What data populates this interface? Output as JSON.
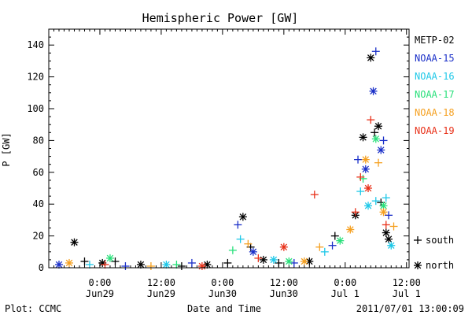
{
  "chart_data": {
    "type": "scatter",
    "title": "Hemispheric Power [GW]",
    "xlabel": "Date and Time",
    "ylabel": "P [GW]",
    "ylim": [
      0,
      150
    ],
    "xlim": [
      "2011-06-28T14:00",
      "2011-07-01T12:30"
    ],
    "y_ticks": [
      0,
      20,
      40,
      60,
      80,
      100,
      120,
      140
    ],
    "x_ticks": [
      {
        "at": "2011-06-29T00:00",
        "line1": "0:00",
        "line2": "Jun29"
      },
      {
        "at": "2011-06-29T12:00",
        "line1": "12:00",
        "line2": "Jun29"
      },
      {
        "at": "2011-06-30T00:00",
        "line1": "0:00",
        "line2": "Jun30"
      },
      {
        "at": "2011-06-30T12:00",
        "line1": "12:00",
        "line2": "Jun30"
      },
      {
        "at": "2011-07-01T00:00",
        "line1": "0:00",
        "line2": "Jul 1"
      },
      {
        "at": "2011-07-01T12:00",
        "line1": "12:00",
        "line2": "Jul 1"
      }
    ],
    "legend_position": "right",
    "marker_legend": [
      {
        "marker": "+",
        "label": "south"
      },
      {
        "marker": "*",
        "label": "north"
      }
    ],
    "series": [
      {
        "name": "METP-02",
        "color": "#000000",
        "points": [
          {
            "x": "2011-06-28T19:00",
            "y": 16,
            "m": "*"
          },
          {
            "x": "2011-06-28T21:00",
            "y": 4,
            "m": "+"
          },
          {
            "x": "2011-06-29T00:30",
            "y": 3,
            "m": "*"
          },
          {
            "x": "2011-06-29T03:00",
            "y": 4,
            "m": "+"
          },
          {
            "x": "2011-06-29T08:00",
            "y": 2,
            "m": "*"
          },
          {
            "x": "2011-06-29T16:00",
            "y": 1,
            "m": "+"
          },
          {
            "x": "2011-06-29T21:00",
            "y": 2,
            "m": "*"
          },
          {
            "x": "2011-06-30T01:00",
            "y": 3,
            "m": "+"
          },
          {
            "x": "2011-06-30T04:00",
            "y": 32,
            "m": "*"
          },
          {
            "x": "2011-06-30T05:30",
            "y": 13,
            "m": "+"
          },
          {
            "x": "2011-06-30T08:00",
            "y": 5,
            "m": "*"
          },
          {
            "x": "2011-06-30T11:00",
            "y": 3,
            "m": "+"
          },
          {
            "x": "2011-06-30T17:00",
            "y": 4,
            "m": "*"
          },
          {
            "x": "2011-06-30T22:00",
            "y": 20,
            "m": "+"
          },
          {
            "x": "2011-07-01T02:00",
            "y": 33,
            "m": "*"
          },
          {
            "x": "2011-07-01T03:30",
            "y": 82,
            "m": "*"
          },
          {
            "x": "2011-07-01T05:00",
            "y": 132,
            "m": "*"
          },
          {
            "x": "2011-07-01T05:45",
            "y": 85,
            "m": "+"
          },
          {
            "x": "2011-07-01T06:30",
            "y": 89,
            "m": "*"
          },
          {
            "x": "2011-07-01T07:00",
            "y": 41,
            "m": "+"
          },
          {
            "x": "2011-07-01T08:00",
            "y": 22,
            "m": "*"
          },
          {
            "x": "2011-07-01T08:30",
            "y": 18,
            "m": "*"
          }
        ]
      },
      {
        "name": "NOAA-15",
        "color": "#1a2fc8",
        "points": [
          {
            "x": "2011-06-28T16:00",
            "y": 2,
            "m": "*"
          },
          {
            "x": "2011-06-29T05:00",
            "y": 1,
            "m": "+"
          },
          {
            "x": "2011-06-29T18:00",
            "y": 3,
            "m": "+"
          },
          {
            "x": "2011-06-30T03:00",
            "y": 27,
            "m": "+"
          },
          {
            "x": "2011-06-30T06:00",
            "y": 10,
            "m": "*"
          },
          {
            "x": "2011-06-30T14:00",
            "y": 3,
            "m": "+"
          },
          {
            "x": "2011-06-30T21:30",
            "y": 14,
            "m": "+"
          },
          {
            "x": "2011-07-01T02:30",
            "y": 68,
            "m": "+"
          },
          {
            "x": "2011-07-01T04:00",
            "y": 62,
            "m": "*"
          },
          {
            "x": "2011-07-01T05:30",
            "y": 111,
            "m": "*"
          },
          {
            "x": "2011-07-01T06:00",
            "y": 136,
            "m": "+"
          },
          {
            "x": "2011-07-01T07:00",
            "y": 74,
            "m": "*"
          },
          {
            "x": "2011-07-01T07:30",
            "y": 80,
            "m": "+"
          },
          {
            "x": "2011-07-01T08:30",
            "y": 33,
            "m": "+"
          }
        ]
      },
      {
        "name": "NOAA-16",
        "color": "#1ec8e8",
        "points": [
          {
            "x": "2011-06-28T22:00",
            "y": 2,
            "m": "+"
          },
          {
            "x": "2011-06-29T13:00",
            "y": 2,
            "m": "*"
          },
          {
            "x": "2011-06-30T03:30",
            "y": 18,
            "m": "+"
          },
          {
            "x": "2011-06-30T10:00",
            "y": 5,
            "m": "*"
          },
          {
            "x": "2011-06-30T20:00",
            "y": 10,
            "m": "+"
          },
          {
            "x": "2011-07-01T03:00",
            "y": 48,
            "m": "+"
          },
          {
            "x": "2011-07-01T04:30",
            "y": 39,
            "m": "*"
          },
          {
            "x": "2011-07-01T06:00",
            "y": 42,
            "m": "+"
          },
          {
            "x": "2011-07-01T08:00",
            "y": 44,
            "m": "+"
          },
          {
            "x": "2011-07-01T09:00",
            "y": 14,
            "m": "*"
          }
        ]
      },
      {
        "name": "NOAA-17",
        "color": "#28e07a",
        "points": [
          {
            "x": "2011-06-29T02:00",
            "y": 6,
            "m": "*"
          },
          {
            "x": "2011-06-29T15:00",
            "y": 2,
            "m": "+"
          },
          {
            "x": "2011-06-30T02:00",
            "y": 11,
            "m": "+"
          },
          {
            "x": "2011-06-30T13:00",
            "y": 4,
            "m": "*"
          },
          {
            "x": "2011-06-30T23:00",
            "y": 17,
            "m": "*"
          },
          {
            "x": "2011-07-01T03:30",
            "y": 56,
            "m": "+"
          },
          {
            "x": "2011-07-01T06:00",
            "y": 81,
            "m": "*"
          },
          {
            "x": "2011-07-01T07:30",
            "y": 39,
            "m": "*"
          }
        ]
      },
      {
        "name": "NOAA-18",
        "color": "#f5a020",
        "points": [
          {
            "x": "2011-06-28T18:00",
            "y": 3,
            "m": "*"
          },
          {
            "x": "2011-06-29T10:00",
            "y": 1,
            "m": "+"
          },
          {
            "x": "2011-06-30T05:00",
            "y": 15,
            "m": "+"
          },
          {
            "x": "2011-06-30T16:00",
            "y": 4,
            "m": "*"
          },
          {
            "x": "2011-06-30T19:00",
            "y": 13,
            "m": "+"
          },
          {
            "x": "2011-07-01T01:00",
            "y": 24,
            "m": "*"
          },
          {
            "x": "2011-07-01T04:00",
            "y": 68,
            "m": "*"
          },
          {
            "x": "2011-07-01T06:30",
            "y": 66,
            "m": "+"
          },
          {
            "x": "2011-07-01T07:30",
            "y": 35,
            "m": "*"
          },
          {
            "x": "2011-07-01T09:30",
            "y": 26,
            "m": "+"
          }
        ]
      },
      {
        "name": "NOAA-19",
        "color": "#e83018",
        "points": [
          {
            "x": "2011-06-29T01:00",
            "y": 2,
            "m": "+"
          },
          {
            "x": "2011-06-29T20:00",
            "y": 1,
            "m": "*"
          },
          {
            "x": "2011-06-30T07:00",
            "y": 6,
            "m": "+"
          },
          {
            "x": "2011-06-30T12:00",
            "y": 13,
            "m": "*"
          },
          {
            "x": "2011-06-30T18:00",
            "y": 46,
            "m": "+"
          },
          {
            "x": "2011-07-01T02:00",
            "y": 35,
            "m": "+"
          },
          {
            "x": "2011-07-01T03:00",
            "y": 57,
            "m": "+"
          },
          {
            "x": "2011-07-01T04:30",
            "y": 50,
            "m": "*"
          },
          {
            "x": "2011-07-01T05:00",
            "y": 93,
            "m": "+"
          },
          {
            "x": "2011-07-01T08:00",
            "y": 27,
            "m": "+"
          }
        ]
      }
    ]
  },
  "footer": {
    "left": "Plot: CCMC",
    "right": "2011/07/01 13:00:09"
  }
}
